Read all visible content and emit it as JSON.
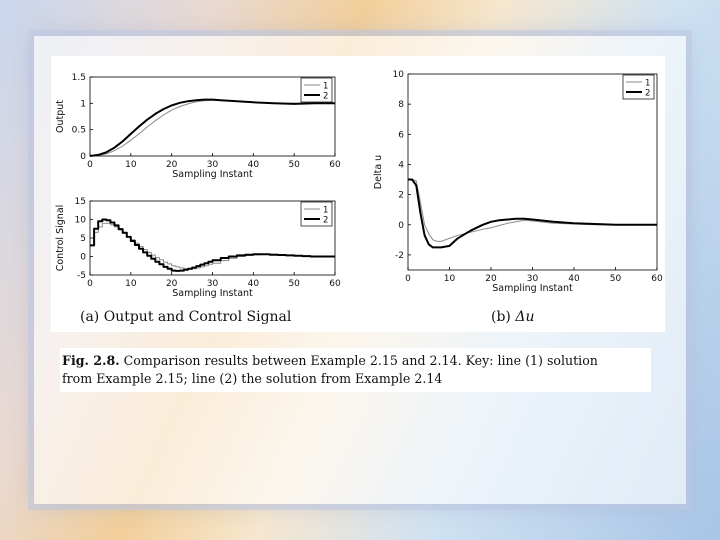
{
  "chart_data": [
    {
      "type": "line",
      "xlabel": "Sampling Instant",
      "ylabel": "Output",
      "xlim": [
        0,
        60
      ],
      "ylim": [
        0,
        1.5
      ],
      "xticks": [
        "0",
        "10",
        "20",
        "30",
        "40",
        "50",
        "60"
      ],
      "yticks": [
        "0",
        "0.5",
        "1",
        "1.5"
      ],
      "legend": "top-right",
      "series": [
        {
          "name": "1",
          "x": [
            0,
            2,
            4,
            6,
            8,
            10,
            12,
            14,
            16,
            18,
            20,
            22,
            24,
            26,
            28,
            30,
            32,
            34,
            36,
            40,
            45,
            50,
            55,
            60
          ],
          "values": [
            0,
            0.01,
            0.04,
            0.1,
            0.19,
            0.3,
            0.42,
            0.55,
            0.67,
            0.78,
            0.87,
            0.94,
            0.99,
            1.03,
            1.05,
            1.06,
            1.06,
            1.05,
            1.04,
            1.02,
            1.0,
            1.0,
            1.0,
            1.0
          ]
        },
        {
          "name": "2",
          "x": [
            0,
            2,
            4,
            6,
            8,
            10,
            12,
            14,
            16,
            18,
            20,
            22,
            24,
            26,
            28,
            30,
            32,
            34,
            36,
            40,
            45,
            50,
            55,
            60
          ],
          "values": [
            0,
            0.02,
            0.07,
            0.16,
            0.28,
            0.42,
            0.56,
            0.69,
            0.8,
            0.89,
            0.96,
            1.01,
            1.04,
            1.06,
            1.07,
            1.07,
            1.06,
            1.05,
            1.04,
            1.02,
            1.0,
            0.99,
            1.0,
            1.0
          ]
        }
      ]
    },
    {
      "type": "line",
      "xlabel": "Sampling Instant",
      "ylabel": "Control Signal",
      "xlim": [
        0,
        60
      ],
      "ylim": [
        -5,
        15
      ],
      "xticks": [
        "0",
        "10",
        "20",
        "30",
        "40",
        "50",
        "60"
      ],
      "yticks": [
        "-5",
        "0",
        "5",
        "10",
        "15"
      ],
      "legend": "top-right",
      "series": [
        {
          "name": "1",
          "x": [
            0,
            1,
            2,
            3,
            4,
            5,
            6,
            7,
            8,
            9,
            10,
            11,
            12,
            13,
            14,
            15,
            16,
            17,
            18,
            19,
            20,
            21,
            22,
            23,
            24,
            25,
            26,
            27,
            28,
            29,
            30,
            32,
            34,
            36,
            38,
            40,
            42,
            44,
            46,
            48,
            50,
            52,
            54,
            56,
            58,
            60
          ],
          "values": [
            3,
            6.5,
            8,
            9,
            9,
            8.6,
            8,
            7.2,
            6.3,
            5.4,
            4.5,
            3.6,
            2.7,
            1.9,
            1.1,
            0.4,
            -0.3,
            -0.9,
            -1.5,
            -2,
            -2.5,
            -2.8,
            -3.1,
            -3.3,
            -3.4,
            -3.3,
            -3.1,
            -2.8,
            -2.5,
            -2.1,
            -1.8,
            -1.1,
            -0.5,
            0,
            0.3,
            0.5,
            0.6,
            0.6,
            0.5,
            0.4,
            0.2,
            0.1,
            0,
            0,
            0,
            0
          ]
        },
        {
          "name": "2",
          "x": [
            0,
            1,
            2,
            3,
            4,
            5,
            6,
            7,
            8,
            9,
            10,
            11,
            12,
            13,
            14,
            15,
            16,
            17,
            18,
            19,
            20,
            21,
            22,
            23,
            24,
            25,
            26,
            27,
            28,
            29,
            30,
            32,
            34,
            36,
            38,
            40,
            42,
            44,
            46,
            48,
            50,
            52,
            54,
            56,
            58,
            60
          ],
          "values": [
            3,
            7.5,
            9.5,
            10,
            9.8,
            9.2,
            8.4,
            7.4,
            6.4,
            5.3,
            4.2,
            3.1,
            2.1,
            1.1,
            0.2,
            -0.6,
            -1.4,
            -2.1,
            -2.8,
            -3.3,
            -3.8,
            -3.9,
            -3.8,
            -3.6,
            -3.3,
            -3,
            -2.6,
            -2.2,
            -1.8,
            -1.4,
            -1,
            -0.4,
            0,
            0.3,
            0.5,
            0.6,
            0.6,
            0.5,
            0.4,
            0.3,
            0.2,
            0.1,
            0,
            0,
            0,
            0
          ]
        }
      ]
    },
    {
      "type": "line",
      "xlabel": "Sampling Instant",
      "ylabel": "Delta u",
      "xlim": [
        0,
        60
      ],
      "ylim": [
        -3,
        10
      ],
      "xticks": [
        "0",
        "10",
        "20",
        "30",
        "40",
        "50",
        "60"
      ],
      "yticks": [
        "-2",
        "0",
        "2",
        "4",
        "6",
        "8",
        "10"
      ],
      "legend": "top-right",
      "series": [
        {
          "name": "1",
          "x": [
            0,
            1,
            2,
            3,
            4,
            5,
            6,
            7,
            8,
            10,
            12,
            15,
            18,
            20,
            22,
            24,
            26,
            28,
            30,
            35,
            40,
            45,
            50,
            55,
            60
          ],
          "values": [
            3,
            3,
            2.9,
            1.5,
            0,
            -0.6,
            -1,
            -1.1,
            -1.1,
            -0.9,
            -0.7,
            -0.5,
            -0.3,
            -0.2,
            -0.05,
            0.1,
            0.2,
            0.3,
            0.25,
            0.1,
            0.05,
            0,
            0,
            0,
            0
          ]
        },
        {
          "name": "2",
          "x": [
            0,
            1,
            2,
            3,
            4,
            5,
            6,
            7,
            8,
            10,
            12,
            15,
            18,
            20,
            22,
            24,
            26,
            28,
            30,
            35,
            40,
            45,
            50,
            55,
            60
          ],
          "values": [
            3,
            3,
            2.6,
            0.8,
            -0.7,
            -1.3,
            -1.5,
            -1.5,
            -1.5,
            -1.4,
            -0.9,
            -0.4,
            0,
            0.2,
            0.3,
            0.35,
            0.4,
            0.4,
            0.35,
            0.2,
            0.1,
            0.05,
            0,
            0,
            0
          ]
        }
      ]
    }
  ],
  "subcaptions": {
    "a": "(a) Output and Control Signal",
    "b_prefix": "(b) ",
    "b_symbol": "Δu"
  },
  "caption": {
    "fig_number": "Fig. 2.8.",
    "line1_rest": " Comparison results between Example 2.15 and 2.14. Key: line (1) solution",
    "line2": "from Example 2.15; line (2) the solution from Example 2.14"
  }
}
